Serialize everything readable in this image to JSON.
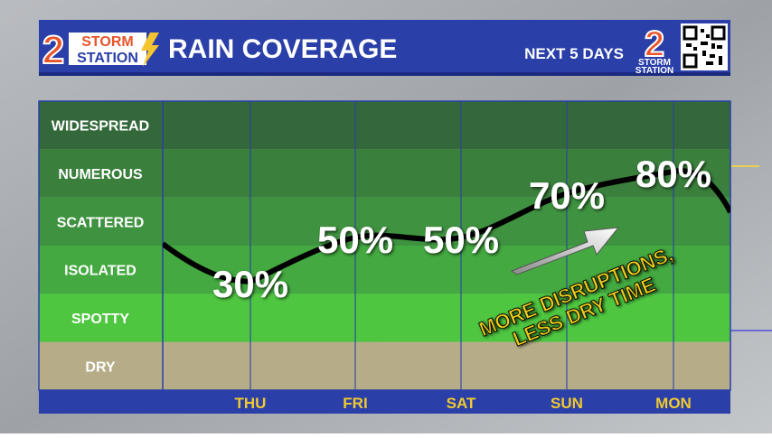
{
  "header": {
    "logo_number": "2",
    "logo_text_1": "STORM",
    "logo_text_2": "STATION",
    "title": "RAIN COVERAGE",
    "subtitle": "NEXT 5 DAYS"
  },
  "chart_data": {
    "type": "line",
    "categories": [
      "THU",
      "FRI",
      "SAT",
      "SUN",
      "MON"
    ],
    "values": [
      30,
      50,
      50,
      70,
      80
    ],
    "value_labels": [
      "30%",
      "50%",
      "50%",
      "70%",
      "80%"
    ],
    "color": "#000000",
    "ybands": [
      {
        "label": "WIDESPREAD",
        "color": "#33693a"
      },
      {
        "label": "NUMEROUS",
        "color": "#3a7f3c"
      },
      {
        "label": "SCATTERED",
        "color": "#3f9240"
      },
      {
        "label": "ISOLATED",
        "color": "#43a940"
      },
      {
        "label": "SPOTTY",
        "color": "#4ec640"
      },
      {
        "label": "DRY",
        "color": "#b6ad88"
      }
    ],
    "annotation": [
      "MORE DISRUPTIONS,",
      "LESS DRY TIME"
    ]
  }
}
